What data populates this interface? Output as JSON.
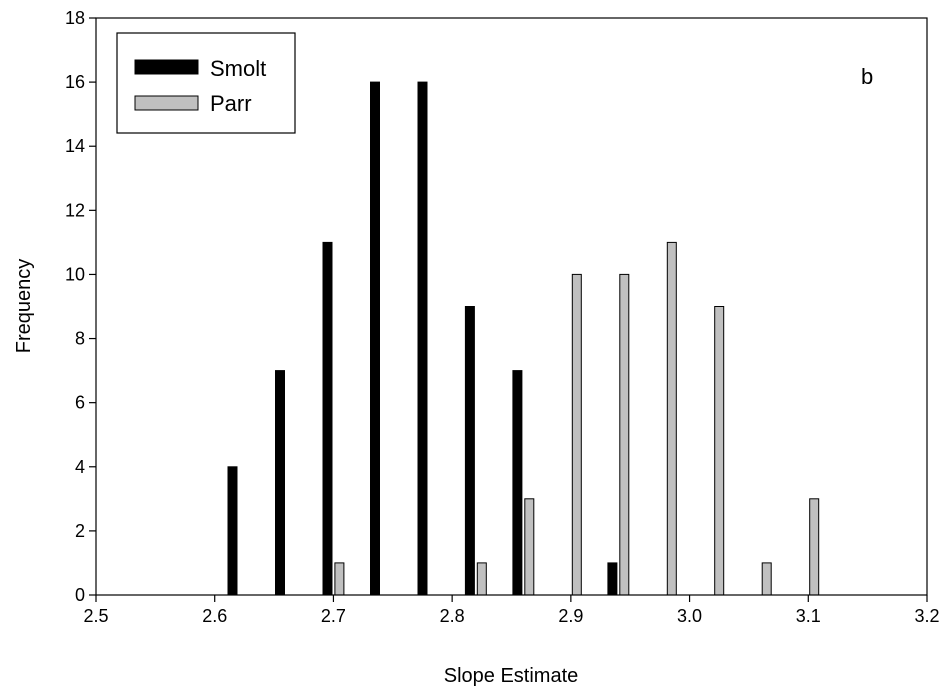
{
  "chart_data": {
    "type": "bar",
    "title": "",
    "annotation": "b",
    "xlabel": "Slope Estimate",
    "ylabel": "Frequency",
    "xlim": [
      2.5,
      3.2
    ],
    "ylim": [
      0,
      18
    ],
    "xticks": [
      "2.5",
      "2.6",
      "2.7",
      "2.8",
      "2.9",
      "3.0",
      "3.1",
      "3.2"
    ],
    "yticks": [
      "0",
      "2",
      "4",
      "6",
      "8",
      "10",
      "12",
      "14",
      "16",
      "18"
    ],
    "grid": false,
    "legend_position": "top-left",
    "series": [
      {
        "name": "Smolt",
        "color": "#000000",
        "points": [
          {
            "x": 2.615,
            "y": 4
          },
          {
            "x": 2.655,
            "y": 7
          },
          {
            "x": 2.695,
            "y": 11
          },
          {
            "x": 2.735,
            "y": 16
          },
          {
            "x": 2.775,
            "y": 16
          },
          {
            "x": 2.815,
            "y": 9
          },
          {
            "x": 2.855,
            "y": 7
          },
          {
            "x": 2.935,
            "y": 1
          }
        ]
      },
      {
        "name": "Parr",
        "color": "#c0c0c0",
        "points": [
          {
            "x": 2.705,
            "y": 1
          },
          {
            "x": 2.825,
            "y": 1
          },
          {
            "x": 2.865,
            "y": 3
          },
          {
            "x": 2.905,
            "y": 10
          },
          {
            "x": 2.945,
            "y": 10
          },
          {
            "x": 2.985,
            "y": 11
          },
          {
            "x": 3.025,
            "y": 9
          },
          {
            "x": 3.065,
            "y": 1
          },
          {
            "x": 3.105,
            "y": 3
          }
        ]
      }
    ]
  }
}
